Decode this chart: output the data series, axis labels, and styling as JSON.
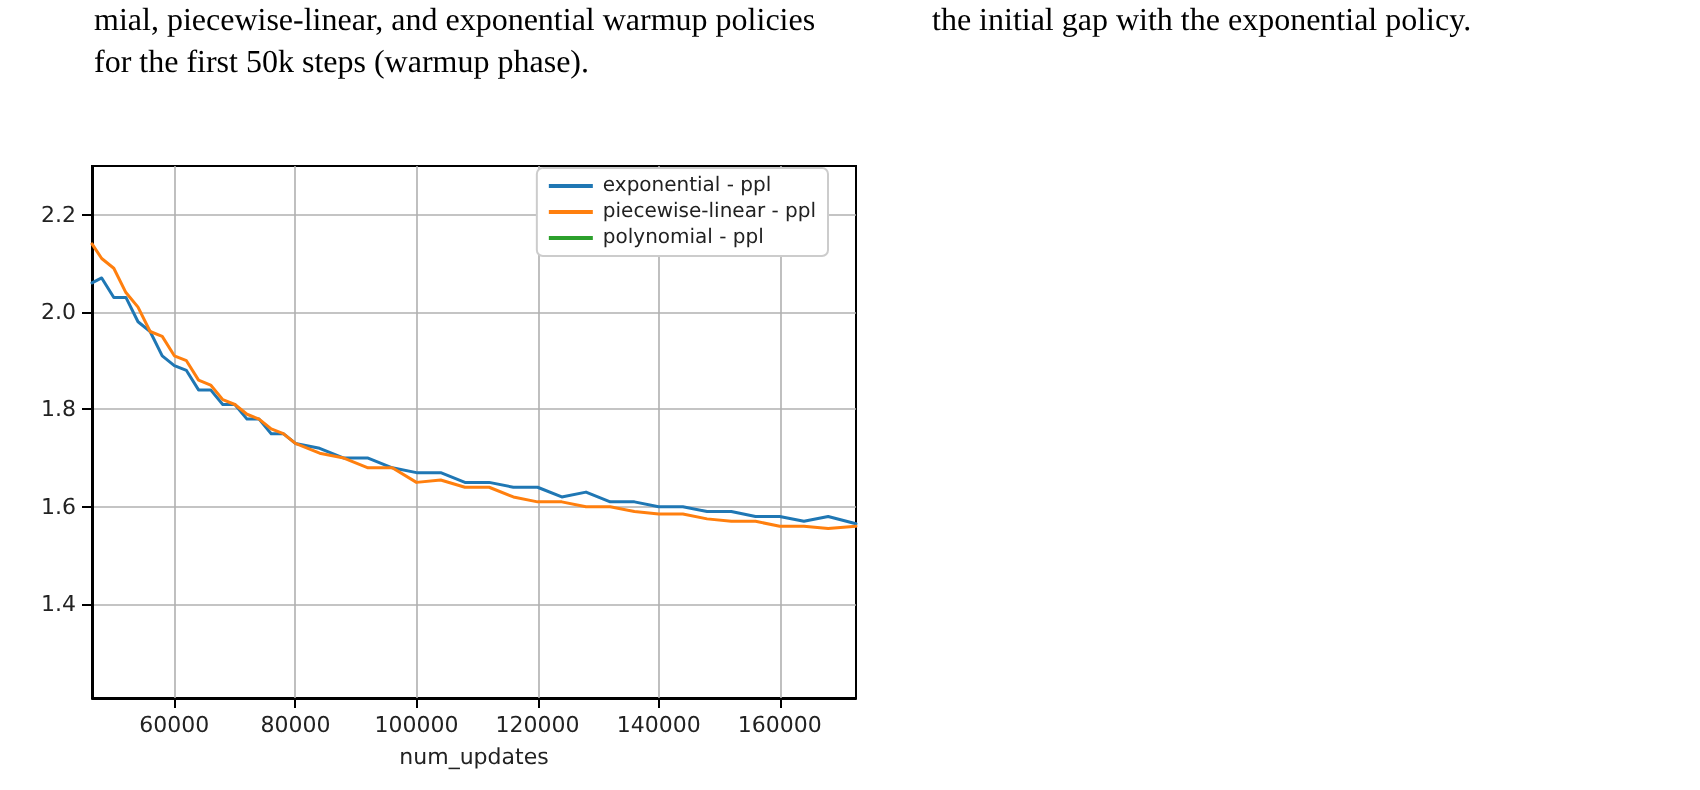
{
  "chart_data": {
    "type": "line",
    "xlabel": "num_updates",
    "annotations": [
      "mial, piecewise-linear, and exponential warmup policies\nfor the first 50k steps (warmup phase).",
      "the initial gap with the exponential policy."
    ],
    "x": [
      46400,
      48000,
      50000,
      52000,
      54000,
      56000,
      58000,
      60000,
      62000,
      64000,
      66000,
      68000,
      70000,
      72000,
      74000,
      76000,
      78000,
      80000,
      84000,
      88000,
      92000,
      96000,
      100000,
      104000,
      108000,
      112000,
      116000,
      120000,
      124000,
      128000,
      132000,
      136000,
      140000,
      144000,
      148000,
      152000,
      156000,
      160000,
      164000,
      168000,
      172600
    ],
    "series": [
      {
        "name": "exponential - ppl",
        "color": "#1f77b4",
        "values": [
          2.06,
          2.07,
          2.03,
          2.03,
          1.98,
          1.96,
          1.91,
          1.89,
          1.88,
          1.84,
          1.84,
          1.81,
          1.81,
          1.78,
          1.78,
          1.75,
          1.75,
          1.73,
          1.72,
          1.7,
          1.7,
          1.68,
          1.67,
          1.67,
          1.65,
          1.65,
          1.64,
          1.64,
          1.62,
          1.63,
          1.61,
          1.61,
          1.6,
          1.6,
          1.59,
          1.59,
          1.58,
          1.58,
          1.57,
          1.58,
          1.565
        ]
      },
      {
        "name": "piecewise-linear - ppl",
        "color": "#ff7f0e",
        "values": [
          2.14,
          2.11,
          2.09,
          2.04,
          2.01,
          1.96,
          1.95,
          1.91,
          1.9,
          1.86,
          1.85,
          1.82,
          1.81,
          1.79,
          1.78,
          1.76,
          1.75,
          1.73,
          1.71,
          1.7,
          1.68,
          1.68,
          1.65,
          1.655,
          1.64,
          1.64,
          1.62,
          1.61,
          1.61,
          1.6,
          1.6,
          1.59,
          1.585,
          1.585,
          1.575,
          1.57,
          1.57,
          1.56,
          1.56,
          1.555,
          1.56
        ]
      },
      {
        "name": "polynomial - ppl",
        "color": "#2ca02c",
        "values": [
          null,
          null,
          null,
          null,
          null,
          null,
          null,
          null,
          null,
          null,
          null,
          null,
          null,
          null,
          null,
          null,
          null,
          null,
          null,
          null,
          null,
          null,
          null,
          null,
          null,
          null,
          null,
          null,
          null,
          null,
          null,
          null,
          null,
          null,
          null,
          null,
          null,
          null,
          null,
          null,
          null
        ]
      }
    ],
    "xlim": [
      46400,
      172600
    ],
    "xticks": [
      60000,
      80000,
      100000,
      120000,
      140000,
      160000
    ],
    "ylim": [
      1.207,
      2.3
    ],
    "yticks": [
      1.4,
      1.6,
      1.8,
      {
        "value": 2,
        "label": "2.0"
      },
      2.2
    ],
    "grid": true,
    "legend": "top right",
    "marker": "none",
    "line_style": "solid"
  }
}
